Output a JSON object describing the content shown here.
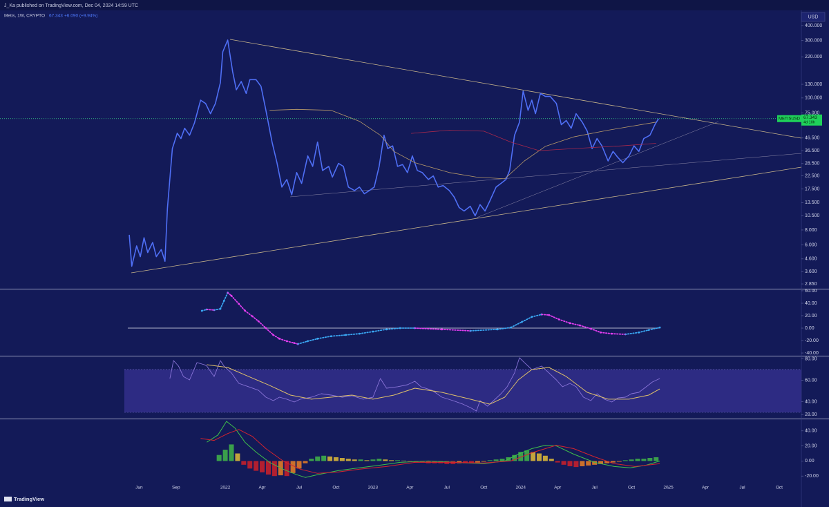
{
  "header": {
    "publisher": "J_Ka published on TradingView.com, Dec 04, 2024 14:59 UTC",
    "symbol_info": "Metis, 1W, CRYPTO",
    "change": "+6.090 (+9.94%)"
  },
  "currency": "USD",
  "footer": "TradingView",
  "chart_data": [
    {
      "type": "line",
      "symbol": "METISUSD",
      "countdown": "4d 10h",
      "log_scale": true,
      "last_price_line": true,
      "xlim": [
        -6.3,
        58.8
      ],
      "ylim": [
        2.6,
        514
      ],
      "yticks": [
        {
          "value": 400,
          "label": "400.000"
        },
        {
          "value": 300,
          "label": "300.000"
        },
        {
          "value": 220,
          "label": "220.000"
        },
        {
          "value": 130,
          "label": "130.000"
        },
        {
          "value": 100,
          "label": "100.000"
        },
        {
          "value": 75,
          "label": "75.000"
        },
        {
          "value": 46.5,
          "label": "46.500"
        },
        {
          "value": 36.5,
          "label": "36.500"
        },
        {
          "value": 28.5,
          "label": "28.500"
        },
        {
          "value": 22.5,
          "label": "22.500"
        },
        {
          "value": 17.5,
          "label": "17.500"
        },
        {
          "value": 13.5,
          "label": "13.500"
        },
        {
          "value": 10.5,
          "label": "10.500"
        },
        {
          "value": 8,
          "label": "8.000"
        },
        {
          "value": 6,
          "label": "6.000"
        },
        {
          "value": 4.6,
          "label": "4.600"
        },
        {
          "value": 3.6,
          "label": "3.600"
        },
        {
          "value": 2.85,
          "label": "2.850"
        }
      ],
      "series": [
        {
          "color": "#4f6ff5",
          "width": 1.6,
          "x": [
            4.2,
            4.4,
            4.8,
            5.1,
            5.4,
            5.7,
            6.1,
            6.4,
            6.8,
            7.1,
            7.3,
            7.7,
            8.1,
            8.4,
            8.7,
            9.1,
            9.5,
            10.0,
            10.4,
            10.8,
            11.2,
            11.6,
            11.8,
            12.2,
            12.6,
            12.9,
            13.3,
            13.7,
            14.0,
            14.5,
            14.9,
            15.3,
            15.8,
            16.2,
            16.6,
            17.0,
            17.4,
            17.8,
            18.2,
            18.7,
            19.1,
            19.5,
            19.9,
            20.4,
            20.7,
            21.2,
            21.6,
            22.0,
            22.5,
            22.9,
            23.3,
            23.7,
            24.1,
            24.5,
            24.9,
            25.2,
            25.6,
            26.0,
            26.4,
            26.8,
            27.2,
            27.6,
            28.0,
            28.5,
            28.9,
            29.3,
            29.7,
            30.2,
            30.6,
            31.0,
            31.4,
            31.9,
            32.3,
            32.7,
            33.1,
            33.5,
            34.0,
            34.4,
            34.8,
            35.1,
            35.5,
            35.9,
            36.2,
            36.6,
            36.9,
            37.2,
            37.6,
            38.0,
            38.4,
            38.9,
            39.3,
            39.7,
            40.1,
            40.5,
            41.0,
            41.4,
            41.8,
            42.2,
            42.6,
            43.1,
            43.5,
            43.9,
            44.3,
            44.8,
            45.2,
            45.6,
            46.0,
            46.5,
            46.9,
            47.2
          ],
          "values": [
            7.3,
            4.0,
            5.9,
            4.8,
            6.9,
            5.2,
            6.3,
            4.8,
            5.5,
            4.4,
            12,
            38,
            51,
            46,
            56,
            49,
            62,
            96,
            90,
            74,
            90,
            134,
            242,
            303,
            165,
            117,
            137,
            109,
            142,
            142,
            125,
            79,
            43,
            29,
            18.2,
            21,
            15.7,
            24,
            19.5,
            33,
            27,
            43,
            25,
            27,
            22,
            28.6,
            27,
            18.2,
            17,
            18.2,
            16,
            17,
            18.2,
            27,
            49,
            38,
            40,
            27,
            28,
            24,
            33,
            25,
            24,
            21,
            22.5,
            18.2,
            18.7,
            17,
            15,
            12.3,
            11.5,
            12.6,
            10.5,
            13,
            11.5,
            14,
            18.2,
            19.5,
            21,
            25,
            49,
            63,
            114,
            79,
            96,
            74,
            109,
            103,
            103,
            90,
            60,
            65,
            56,
            74,
            63,
            53,
            38,
            46,
            40,
            30,
            36,
            32,
            29,
            33,
            40,
            36,
            46,
            49,
            60,
            67.343
          ]
        },
        {
          "color": "#b89a6a",
          "width": 0.8,
          "x": [
            15.6,
            17.8,
            20.6,
            22.9,
            24.6,
            25.7,
            27.4,
            30.2,
            32.4,
            34.7,
            36.3,
            38.0,
            40.3,
            43.1,
            47.0
          ],
          "values": [
            79,
            80.5,
            79,
            64,
            49,
            36,
            29,
            24,
            22,
            21.3,
            30,
            39.6,
            47.5,
            54,
            63
          ]
        },
        {
          "color": "#a8284c",
          "width": 0.8,
          "x": [
            27.1,
            30.2,
            33.0,
            35.2,
            37.5,
            40.3,
            44.2,
            47.0
          ],
          "values": [
            50.8,
            54,
            53,
            43,
            36.5,
            38,
            40,
            42
          ]
        }
      ]
    },
    {
      "type": "scatter",
      "zero_line": true,
      "up_color": "#3aa6f2",
      "down_color": "#e23ef0",
      "xlim": [
        -6.3,
        58.8
      ],
      "ylim": [
        -44.4,
        61.1
      ],
      "yticks": [
        {
          "value": 60,
          "label": "60.00"
        },
        {
          "value": 40,
          "label": "40.00"
        },
        {
          "value": 20,
          "label": "20.00"
        },
        {
          "value": 0,
          "label": "0.00"
        },
        {
          "value": -20,
          "label": "-20.00"
        },
        {
          "value": -40,
          "label": "-40.00"
        }
      ],
      "x": [
        10.1,
        10.5,
        11.1,
        11.6,
        11.9,
        12.2,
        12.5,
        13.1,
        13.6,
        14.2,
        14.7,
        15.3,
        15.9,
        16.4,
        17.0,
        17.6,
        17.9,
        18.7,
        19.5,
        20.6,
        21.8,
        22.9,
        24.0,
        25.1,
        26.2,
        27.4,
        29.6,
        31.9,
        34.1,
        35.2,
        36.1,
        36.9,
        37.7,
        38.3,
        39.1,
        40.0,
        40.8,
        41.7,
        42.5,
        43.4,
        44.5,
        45.6,
        46.4,
        47.3
      ],
      "values": [
        27.8,
        30,
        29,
        31,
        44,
        57,
        52,
        39,
        28,
        19,
        11,
        0,
        -11,
        -17,
        -21,
        -24,
        -25.6,
        -21,
        -17,
        -13,
        -11,
        -9,
        -5.6,
        -2,
        0,
        0,
        -2,
        -4.4,
        -2,
        1,
        10,
        18,
        22,
        21,
        14,
        8,
        4.4,
        -1,
        -7,
        -9,
        -10,
        -7,
        -3,
        1
      ]
    },
    {
      "type": "line",
      "band": [
        30,
        70
      ],
      "band_color": "#35308f",
      "xlim": [
        -6.3,
        58.8
      ],
      "ylim": [
        24.2,
        81.6
      ],
      "yticks": [
        {
          "value": 80,
          "label": "80.00"
        },
        {
          "value": 60,
          "label": "60.00"
        },
        {
          "value": 40,
          "label": "40.00"
        },
        {
          "value": 28,
          "label": "28.00"
        }
      ],
      "series": [
        {
          "color": "#8a74d8",
          "width": 0.9,
          "x": [
            7.5,
            7.8,
            8.2,
            8.6,
            9.1,
            9.7,
            10.3,
            10.5,
            11.1,
            11.6,
            11.9,
            12.5,
            13.1,
            13.9,
            14.7,
            15.3,
            15.9,
            16.4,
            17.0,
            17.6,
            18.1,
            19.0,
            19.8,
            20.6,
            21.5,
            22.3,
            23.2,
            24.0,
            24.6,
            25.1,
            26.0,
            26.8,
            27.4,
            27.9,
            28.8,
            29.6,
            30.5,
            31.3,
            31.9,
            32.4,
            32.7,
            33.3,
            33.8,
            34.4,
            34.9,
            35.5,
            35.9,
            36.3,
            36.9,
            37.7,
            38.3,
            38.9,
            39.4,
            40.0,
            40.5,
            41.1,
            41.7,
            42.2,
            42.8,
            43.4,
            43.9,
            44.5,
            45.0,
            45.6,
            46.2,
            46.7,
            47.3
          ],
          "values": [
            61.6,
            78.4,
            73.2,
            63.5,
            60.3,
            76.5,
            74.5,
            73.2,
            63.5,
            78.4,
            73.2,
            66.8,
            57.1,
            53.9,
            50.6,
            44.2,
            41.0,
            44.2,
            42.3,
            39.7,
            42.3,
            44.2,
            47.4,
            46.1,
            44.2,
            45.5,
            42.3,
            44.2,
            61.6,
            52.6,
            53.9,
            55.8,
            59.0,
            53.9,
            50.6,
            44.2,
            41.0,
            37.7,
            34.5,
            31.3,
            41.0,
            35.8,
            41.0,
            47.4,
            53.9,
            66.8,
            81.0,
            76.5,
            70.0,
            73.2,
            66.8,
            60.3,
            53.9,
            57.1,
            53.9,
            44.2,
            41.0,
            47.4,
            42.3,
            39.7,
            43.5,
            44.2,
            47.4,
            48.7,
            53.9,
            58.4,
            61.6
          ]
        },
        {
          "color": "#e0c16a",
          "width": 1,
          "x": [
            10.5,
            12.2,
            13.9,
            15.6,
            17.3,
            19.0,
            20.6,
            22.3,
            24.0,
            25.7,
            27.4,
            29.6,
            31.9,
            33.5,
            34.7,
            35.8,
            36.9,
            38.3,
            39.7,
            41.4,
            43.1,
            44.8,
            46.4,
            47.3
          ],
          "values": [
            74.5,
            71.9,
            63.5,
            55.2,
            46.1,
            42.3,
            44.2,
            46.1,
            42.3,
            46.1,
            52.6,
            48.7,
            42.3,
            37.7,
            44.2,
            60.3,
            70.0,
            71.9,
            63.5,
            48.7,
            42.3,
            42.3,
            46.1,
            51.9
          ]
        }
      ]
    },
    {
      "type": "bar",
      "rise_pos_color": "#3fae4a",
      "fall_pos_color": "#d6b43a",
      "fall_neg_color": "#c4202c",
      "rise_neg_color": "#e07a28",
      "xlim": [
        -6.3,
        58.8
      ],
      "ylim": [
        -34.5,
        54.5
      ],
      "yticks": [
        {
          "value": 40,
          "label": "40.00"
        },
        {
          "value": 20,
          "label": "20.00"
        },
        {
          "value": 0,
          "label": "0.00"
        },
        {
          "value": -20,
          "label": "-20.00"
        }
      ],
      "xticks": [
        {
          "value": 5,
          "label": "Jun"
        },
        {
          "value": 8,
          "label": "Sep"
        },
        {
          "value": 12,
          "label": "2022"
        },
        {
          "value": 15,
          "label": "Apr"
        },
        {
          "value": 18,
          "label": "Jul"
        },
        {
          "value": 21,
          "label": "Oct"
        },
        {
          "value": 24,
          "label": "2023"
        },
        {
          "value": 27,
          "label": "Apr"
        },
        {
          "value": 30,
          "label": "Jul"
        },
        {
          "value": 33,
          "label": "Oct"
        },
        {
          "value": 36,
          "label": "2024"
        },
        {
          "value": 39,
          "label": "Apr"
        },
        {
          "value": 42,
          "label": "Jul"
        },
        {
          "value": 45,
          "label": "Oct"
        },
        {
          "value": 48,
          "label": "2025"
        },
        {
          "value": 51,
          "label": "Apr"
        },
        {
          "value": 54,
          "label": "Jul"
        },
        {
          "value": 57,
          "label": "Oct"
        }
      ],
      "x": [
        11.5,
        12.0,
        12.5,
        13.0,
        13.5,
        14.0,
        14.5,
        15.0,
        15.5,
        16.0,
        16.5,
        17.0,
        17.5,
        18.0,
        18.5,
        19.0,
        19.5,
        20.0,
        20.5,
        21.0,
        21.5,
        22.0,
        22.5,
        23.0,
        23.5,
        24.0,
        24.5,
        25.0,
        25.5,
        26.0,
        26.5,
        27.0,
        27.5,
        28.0,
        28.5,
        29.0,
        29.5,
        30.0,
        30.5,
        31.0,
        31.5,
        32.0,
        32.5,
        33.0,
        33.5,
        34.0,
        34.5,
        35.0,
        35.5,
        36.0,
        36.5,
        37.0,
        37.5,
        38.0,
        38.5,
        39.0,
        39.5,
        40.0,
        40.5,
        41.0,
        41.5,
        42.0,
        42.5,
        43.0,
        43.5,
        44.0,
        44.5,
        45.0,
        45.5,
        46.0,
        46.5,
        47.0
      ],
      "values": [
        8,
        15,
        22,
        10,
        -5,
        -10,
        -13,
        -15,
        -18,
        -20,
        -19,
        -20,
        -16,
        -10,
        -3,
        3,
        6,
        7,
        6,
        5,
        4,
        3,
        2,
        2,
        1,
        2,
        3,
        2,
        1,
        1,
        0.5,
        -1,
        -2,
        -2,
        -3,
        -3,
        -3,
        -4,
        -4,
        -3,
        -3,
        -3,
        -2,
        -1,
        1,
        2,
        3,
        5,
        8,
        12,
        14,
        12,
        10,
        7,
        3,
        -2,
        -5,
        -7,
        -8,
        -7,
        -6,
        -5,
        -4,
        -3,
        -2,
        -1,
        1,
        2,
        3,
        3,
        4,
        5
      ],
      "series": [
        {
          "color": "#3fbf4a",
          "width": 1,
          "x": [
            10.5,
            11.4,
            12.1,
            12.8,
            13.6,
            14.5,
            15.6,
            16.7,
            17.8,
            18.5,
            19.5,
            21.2,
            22.9,
            24.6,
            26.2,
            28.5,
            30.7,
            33.0,
            34.7,
            35.8,
            36.9,
            38.0,
            38.9,
            40.3,
            42.0,
            43.6,
            44.9,
            46.2,
            47.3
          ],
          "values": [
            25,
            34.5,
            52.7,
            43.6,
            25,
            11.8,
            -1.8,
            -10.9,
            -18.2,
            -21.8,
            -18.2,
            -12.7,
            -9.1,
            -5.5,
            -1.8,
            0,
            -1.8,
            -3.6,
            0,
            9.1,
            16.4,
            20.9,
            20,
            9.1,
            -1.8,
            -7.3,
            -9.1,
            -5.5,
            0
          ]
        },
        {
          "color": "#d3242e",
          "width": 1,
          "x": [
            10.0,
            11.1,
            12.2,
            13.1,
            14.2,
            15.3,
            16.7,
            18.1,
            19.5,
            21.2,
            22.9,
            25.1,
            27.4,
            30.2,
            33.0,
            35.2,
            36.9,
            38.9,
            40.3,
            42.0,
            43.6,
            45.3,
            47.3
          ],
          "values": [
            30,
            27.3,
            36.4,
            41.8,
            32.7,
            16.4,
            0,
            -10.9,
            -16.4,
            -14.5,
            -10.9,
            -7.3,
            -1.8,
            -1.8,
            -2.7,
            0,
            10.9,
            20.9,
            16.4,
            5.5,
            -3.6,
            -7.3,
            -3.6
          ]
        }
      ]
    }
  ]
}
